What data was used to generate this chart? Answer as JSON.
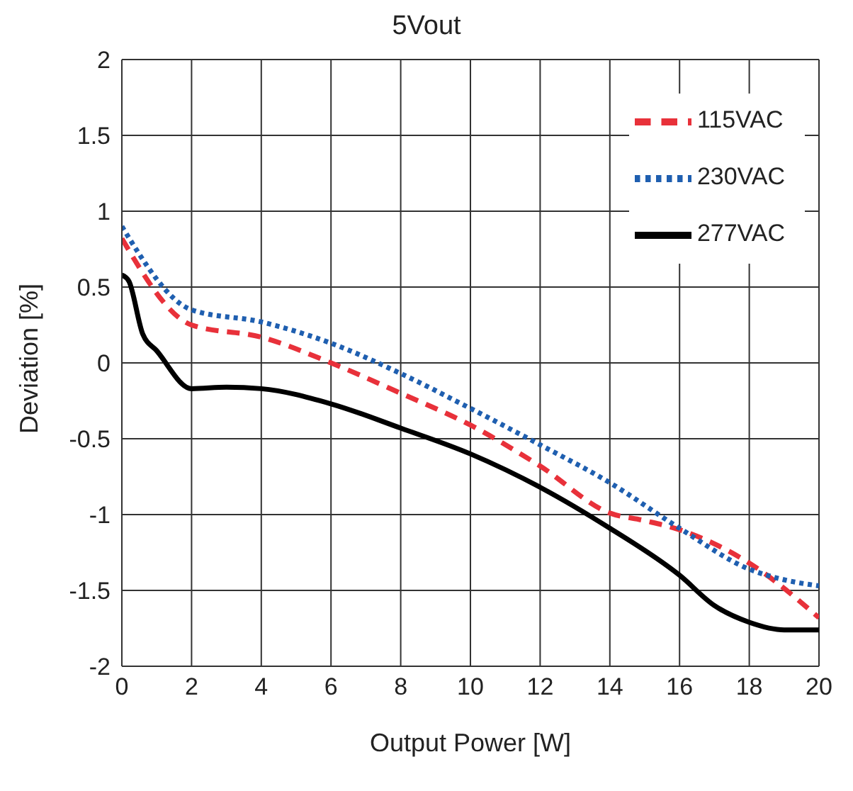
{
  "chart_data": {
    "type": "line",
    "title": "5Vout",
    "xlabel": "Output Power [W]",
    "ylabel": "Deviation [%]",
    "xlim": [
      0,
      20
    ],
    "xticks": [
      0,
      2,
      4,
      6,
      8,
      10,
      12,
      14,
      16,
      18,
      20
    ],
    "ylim": [
      -2,
      2
    ],
    "yticks": [
      -2,
      -1.5,
      -1,
      -0.5,
      0,
      0.5,
      1,
      1.5,
      2
    ],
    "grid": true,
    "legend": "top right",
    "marker": "none",
    "series": [
      {
        "name": "115VAC",
        "color": "#e8313a",
        "line_style": "dashed",
        "x": [
          0,
          2,
          4,
          6,
          8,
          10,
          12,
          14,
          15,
          16,
          18,
          20
        ],
        "values": [
          0.82,
          0.25,
          0.17,
          0.0,
          -0.2,
          -0.41,
          -0.68,
          -0.99,
          -1.04,
          -1.1,
          -1.32,
          -1.68
        ]
      },
      {
        "name": "230VAC",
        "color": "#1f5fb0",
        "line_style": "dotted",
        "x": [
          0,
          2,
          4,
          6,
          8,
          10,
          12,
          14,
          16,
          18,
          19,
          20
        ],
        "values": [
          0.9,
          0.35,
          0.27,
          0.13,
          -0.07,
          -0.3,
          -0.54,
          -0.79,
          -1.09,
          -1.36,
          -1.43,
          -1.47
        ]
      },
      {
        "name": "277VAC",
        "color": "#000000",
        "line_style": "solid",
        "x": [
          0,
          0.2,
          0.6,
          1,
          2,
          3,
          4,
          6,
          8,
          10,
          12,
          14,
          16,
          17,
          18,
          19,
          20
        ],
        "values": [
          0.58,
          0.54,
          0.19,
          0.08,
          -0.17,
          -0.16,
          -0.17,
          -0.27,
          -0.43,
          -0.6,
          -0.82,
          -1.09,
          -1.4,
          -1.6,
          -1.71,
          -1.76,
          -1.76
        ]
      }
    ]
  }
}
